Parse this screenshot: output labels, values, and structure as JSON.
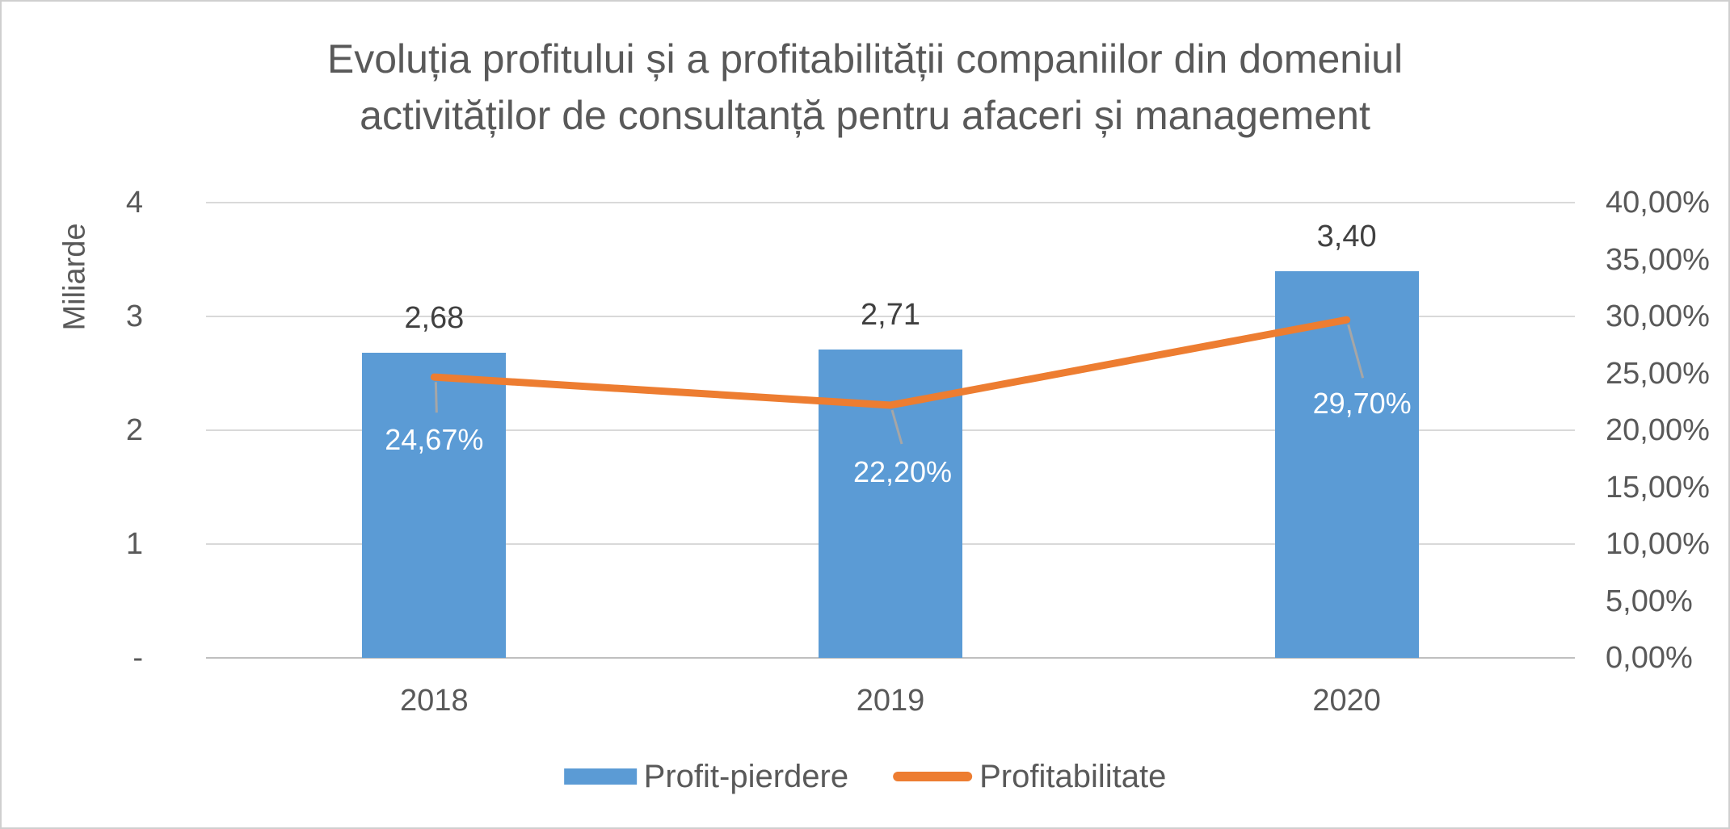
{
  "title": {
    "line1": "Evoluția profitului și a profitabilității companiilor din domeniul",
    "line2": "activităților de consultanță pentru afaceri și management"
  },
  "chart_data": {
    "type": "bar",
    "subtype": "combo-bar-line-two-axes",
    "categories": [
      "2018",
      "2019",
      "2020"
    ],
    "series": [
      {
        "name": "Profit-pierdere",
        "type": "bar",
        "axis": "left",
        "values": [
          2.68,
          2.71,
          3.4
        ],
        "labels": [
          "2,68",
          "2,71",
          "3,40"
        ],
        "color": "#5b9bd5"
      },
      {
        "name": "Profitabilitate",
        "type": "line",
        "axis": "right",
        "values": [
          0.2467,
          0.222,
          0.297
        ],
        "labels": [
          "24,67%",
          "22,20%",
          "29,70%"
        ],
        "color": "#ed7d31"
      }
    ],
    "left_axis": {
      "title": "Miliarde",
      "min": 0,
      "max": 4,
      "ticks": [
        "4",
        "3",
        "2",
        "1",
        "-"
      ]
    },
    "right_axis": {
      "min": 0,
      "max": 0.4,
      "ticks": [
        "40,00%",
        "35,00%",
        "30,00%",
        "25,00%",
        "20,00%",
        "15,00%",
        "10,00%",
        "5,00%",
        "0,00%"
      ]
    },
    "grid": "horizontal-major",
    "legend_position": "bottom"
  },
  "colors": {
    "bar": "#5b9bd5",
    "line": "#ed7d31",
    "text": "#595959",
    "data_label": "#404040",
    "pct_label_on_bar": "#ffffff",
    "gridline": "#d9d9d9",
    "axis_line": "#bfbfbf",
    "leader_line": "#a6a6a6",
    "border": "#cfcfcf"
  }
}
